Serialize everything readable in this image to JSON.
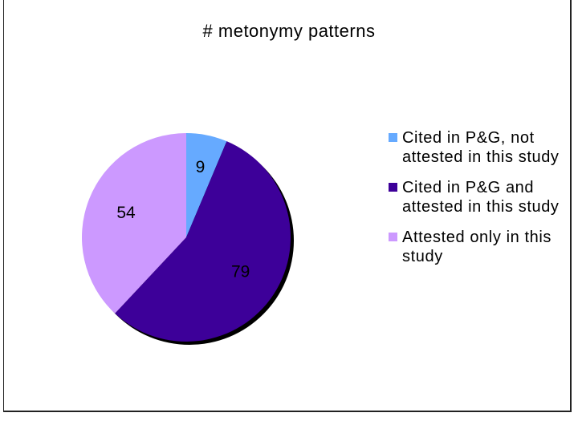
{
  "chart_data": {
    "type": "pie",
    "title": "# metonymy patterns",
    "slices": [
      {
        "label": "Cited in P&G, not attested in this study",
        "value": 9,
        "value_label": "9",
        "color": "#66aaff"
      },
      {
        "label": "Cited in P&G and attested in this study",
        "value": 79,
        "value_label": "79",
        "color": "#3d0099"
      },
      {
        "label": "Attested only in this study",
        "value": 54,
        "value_label": "54",
        "color": "#cc99ff"
      }
    ],
    "legend_position": "right"
  }
}
